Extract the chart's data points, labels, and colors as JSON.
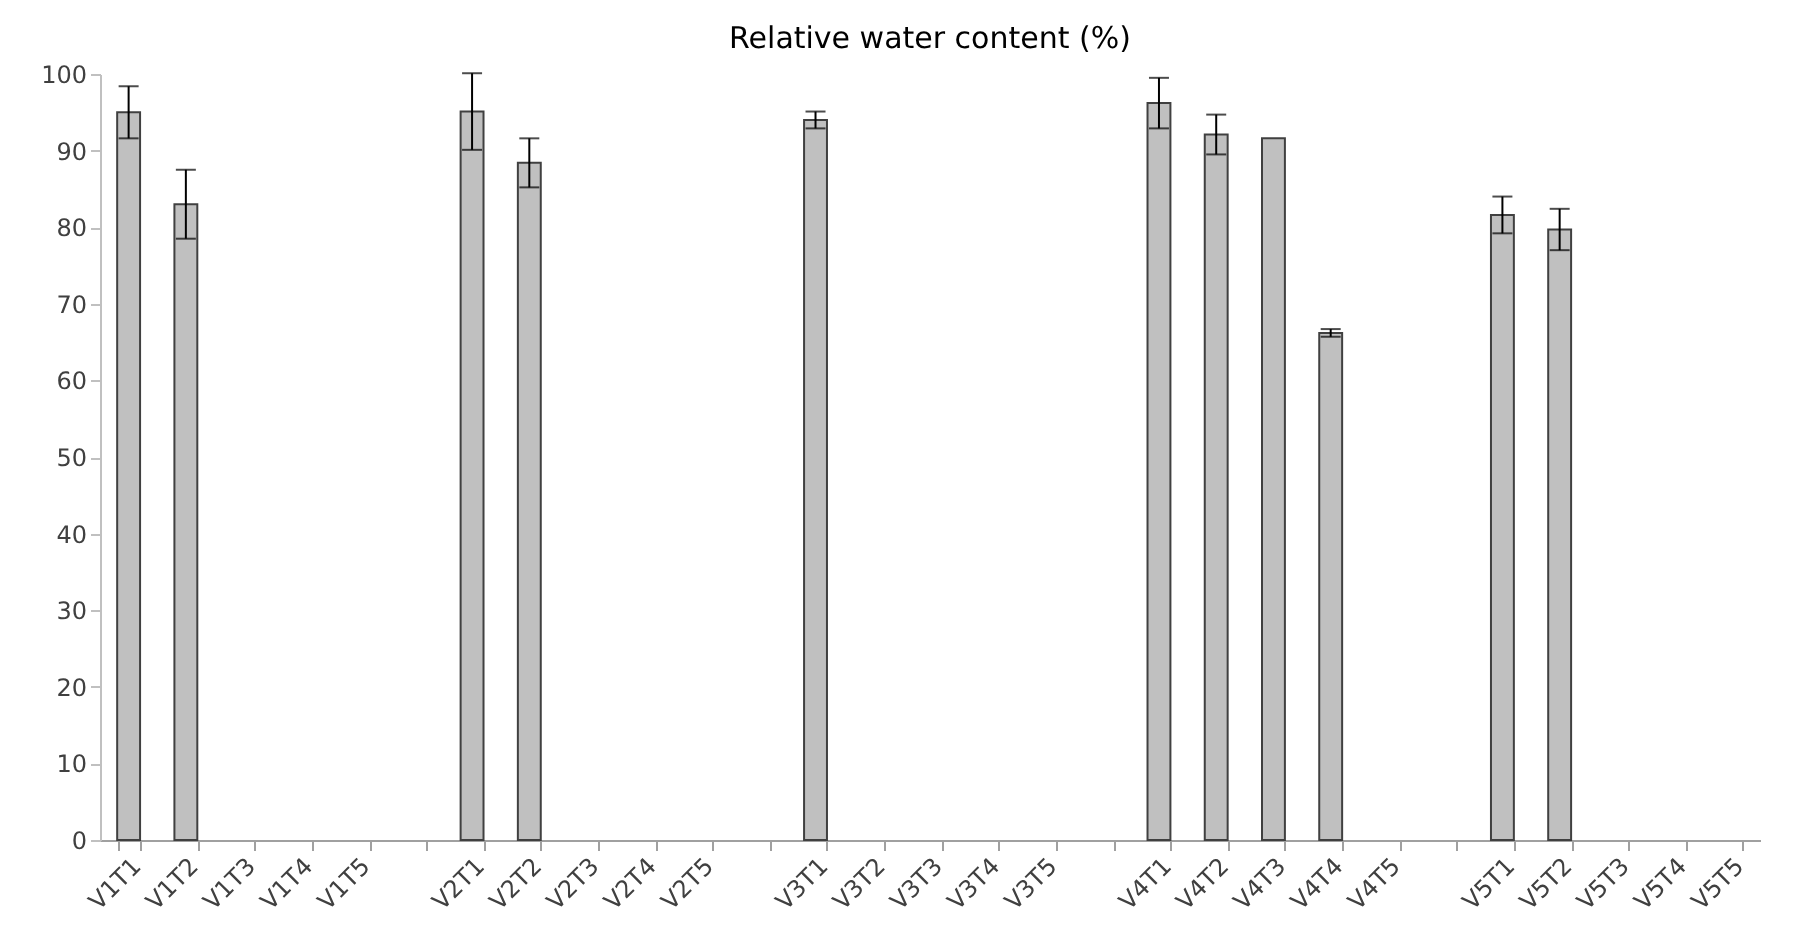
{
  "chart_data": {
    "type": "bar",
    "title": "Relative water content (%)",
    "categories": [
      "V1T1",
      "V1T2",
      "V1T3",
      "V1T4",
      "V1T5",
      null,
      "V2T1",
      "V2T2",
      "V2T3",
      "V2T4",
      "V2T5",
      null,
      "V3T1",
      "V3T2",
      "V3T3",
      "V3T4",
      "V3T5",
      null,
      "V4T1",
      "V4T2",
      "V4T3",
      "V4T4",
      "V4T5",
      null,
      "V5T1",
      "V5T2",
      "V5T3",
      "V5T4",
      "V5T5"
    ],
    "values": [
      95,
      83,
      null,
      null,
      null,
      null,
      95.1,
      88.4,
      null,
      null,
      null,
      null,
      94.0,
      null,
      null,
      null,
      null,
      null,
      96.2,
      92.1,
      91.6,
      66.2,
      null,
      null,
      81.6,
      79.7,
      null,
      null,
      null
    ],
    "errors": [
      3.4,
      4.5,
      null,
      null,
      null,
      null,
      5,
      3.2,
      null,
      null,
      null,
      null,
      1.1,
      null,
      null,
      null,
      null,
      null,
      3.3,
      2.6,
      null,
      0.5,
      null,
      null,
      2.4,
      2.7,
      null,
      null,
      null
    ],
    "color": "#c0c0c0",
    "ylim": [
      0,
      100
    ],
    "yticks": [
      0,
      10,
      20,
      30,
      40,
      50,
      60,
      70,
      80,
      90,
      100
    ],
    "grid": false
  }
}
